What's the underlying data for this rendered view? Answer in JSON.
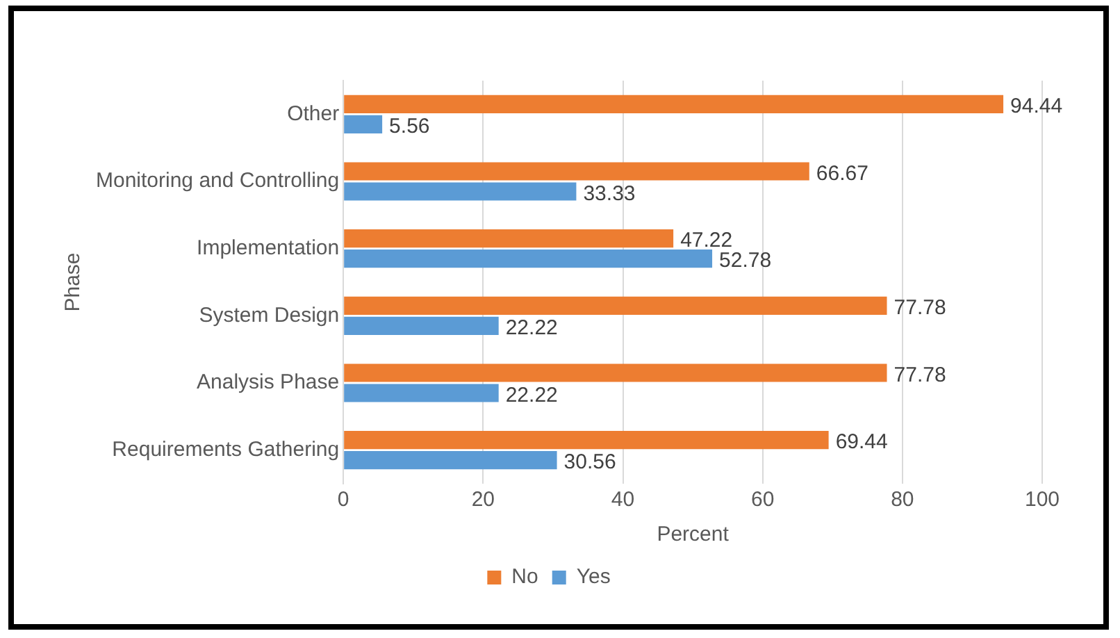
{
  "chart_data": {
    "type": "bar",
    "orientation": "horizontal",
    "xlabel": "Percent",
    "ylabel": "Phase",
    "categories": [
      "Other",
      "Monitoring and Controlling",
      "Implementation",
      "System Design",
      "Analysis Phase",
      "Requirements Gathering"
    ],
    "series": [
      {
        "name": "No",
        "color": "#ed7d31",
        "values": [
          94.44,
          66.67,
          47.22,
          77.78,
          77.78,
          69.44
        ]
      },
      {
        "name": "Yes",
        "color": "#5b9bd5",
        "values": [
          5.56,
          33.33,
          52.78,
          22.22,
          22.22,
          30.56
        ]
      }
    ],
    "xlim": [
      0,
      100
    ],
    "xticks": [
      0,
      20,
      40,
      60,
      80,
      100
    ],
    "grid": "x",
    "legend": "bottom",
    "data_labels": true
  }
}
